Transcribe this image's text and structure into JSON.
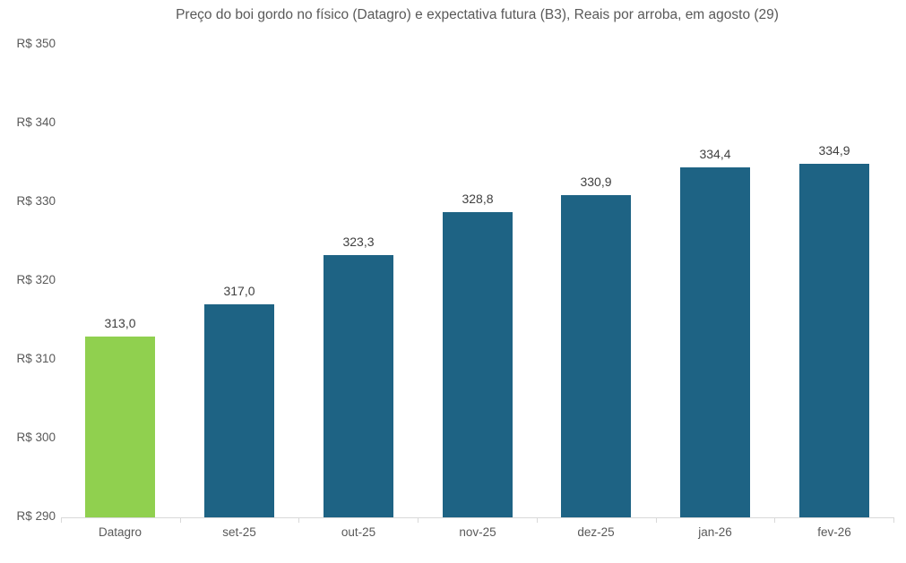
{
  "chart_data": {
    "type": "bar",
    "title": "Preço do boi gordo no físico (Datagro)  e expectativa futura (B3), Reais por arroba, em agosto (29)",
    "categories": [
      "Datagro",
      "set-25",
      "out-25",
      "nov-25",
      "dez-25",
      "jan-26",
      "fev-26"
    ],
    "values": [
      313.0,
      317.0,
      323.3,
      328.8,
      330.9,
      334.4,
      334.9
    ],
    "value_labels": [
      "313,0",
      "317,0",
      "323,3",
      "328,8",
      "330,9",
      "334,4",
      "334,9"
    ],
    "bar_colors": [
      "#90D04F",
      "#1E6384",
      "#1E6384",
      "#1E6384",
      "#1E6384",
      "#1E6384",
      "#1E6384"
    ],
    "xlabel": "",
    "ylabel": "",
    "ylim": [
      290,
      350
    ],
    "yticks": [
      290,
      300,
      310,
      320,
      330,
      340,
      350
    ],
    "ytick_labels": [
      "R$ 290",
      "R$ 300",
      "R$ 310",
      "R$ 320",
      "R$ 330",
      "R$ 340",
      "R$ 350"
    ],
    "grid": false,
    "legend": "none",
    "colors": {
      "highlight_bar": "#90D04F",
      "series_bar": "#1E6384",
      "axis_line": "#D9D9D9",
      "title_text": "#595959",
      "axis_text": "#595959",
      "value_text": "#404040"
    }
  }
}
